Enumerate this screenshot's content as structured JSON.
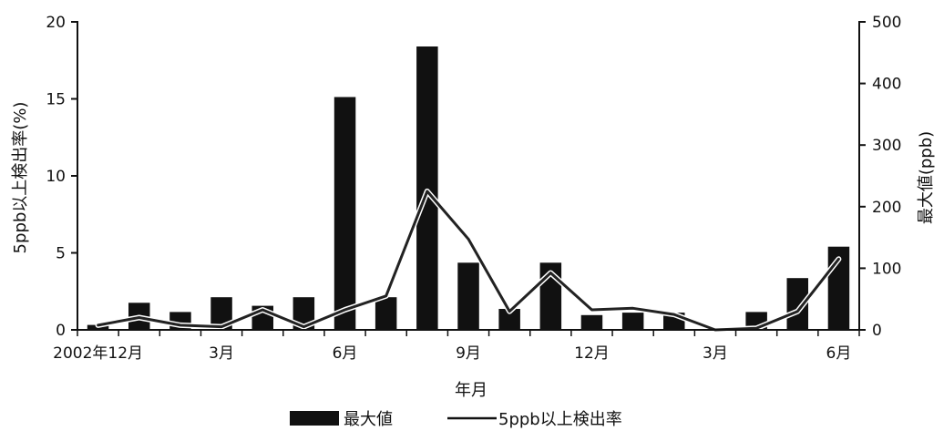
{
  "chart_data": {
    "type": "bar+line",
    "xlabel": "年月",
    "ylabel_left": "5ppb以上検出率(%)",
    "ylabel_right": "最大値(ppb)",
    "yleft_lim": [
      0,
      20
    ],
    "yright_lim": [
      0,
      500
    ],
    "yleft_ticks": [
      0,
      5,
      10,
      15,
      20
    ],
    "yright_ticks": [
      0,
      100,
      200,
      300,
      400,
      500
    ],
    "x_tick_labels": [
      {
        "index": 0,
        "label": "2002年12月"
      },
      {
        "index": 3,
        "label": "3月"
      },
      {
        "index": 6,
        "label": "6月"
      },
      {
        "index": 9,
        "label": "9月"
      },
      {
        "index": 12,
        "label": "12月"
      },
      {
        "index": 15,
        "label": "3月"
      },
      {
        "index": 18,
        "label": "6月"
      }
    ],
    "series": [
      {
        "name": "最大値",
        "kind": "bar",
        "axis": "right",
        "color": "#111111",
        "values": [
          8,
          44,
          29,
          53,
          39,
          53,
          378,
          53,
          460,
          109,
          34,
          109,
          24,
          28,
          28,
          0,
          29,
          84,
          135
        ]
      },
      {
        "name": "5ppb以上検出率",
        "kind": "line",
        "axis": "left",
        "color": "#222222",
        "values": [
          0.3,
          0.8,
          0.3,
          0.2,
          1.3,
          0.2,
          1.3,
          2.2,
          9.0,
          5.9,
          1.2,
          3.7,
          1.3,
          1.4,
          1.0,
          0.0,
          0.1,
          1.2,
          4.6
        ]
      }
    ],
    "legend": {
      "placement": "bottom"
    }
  }
}
